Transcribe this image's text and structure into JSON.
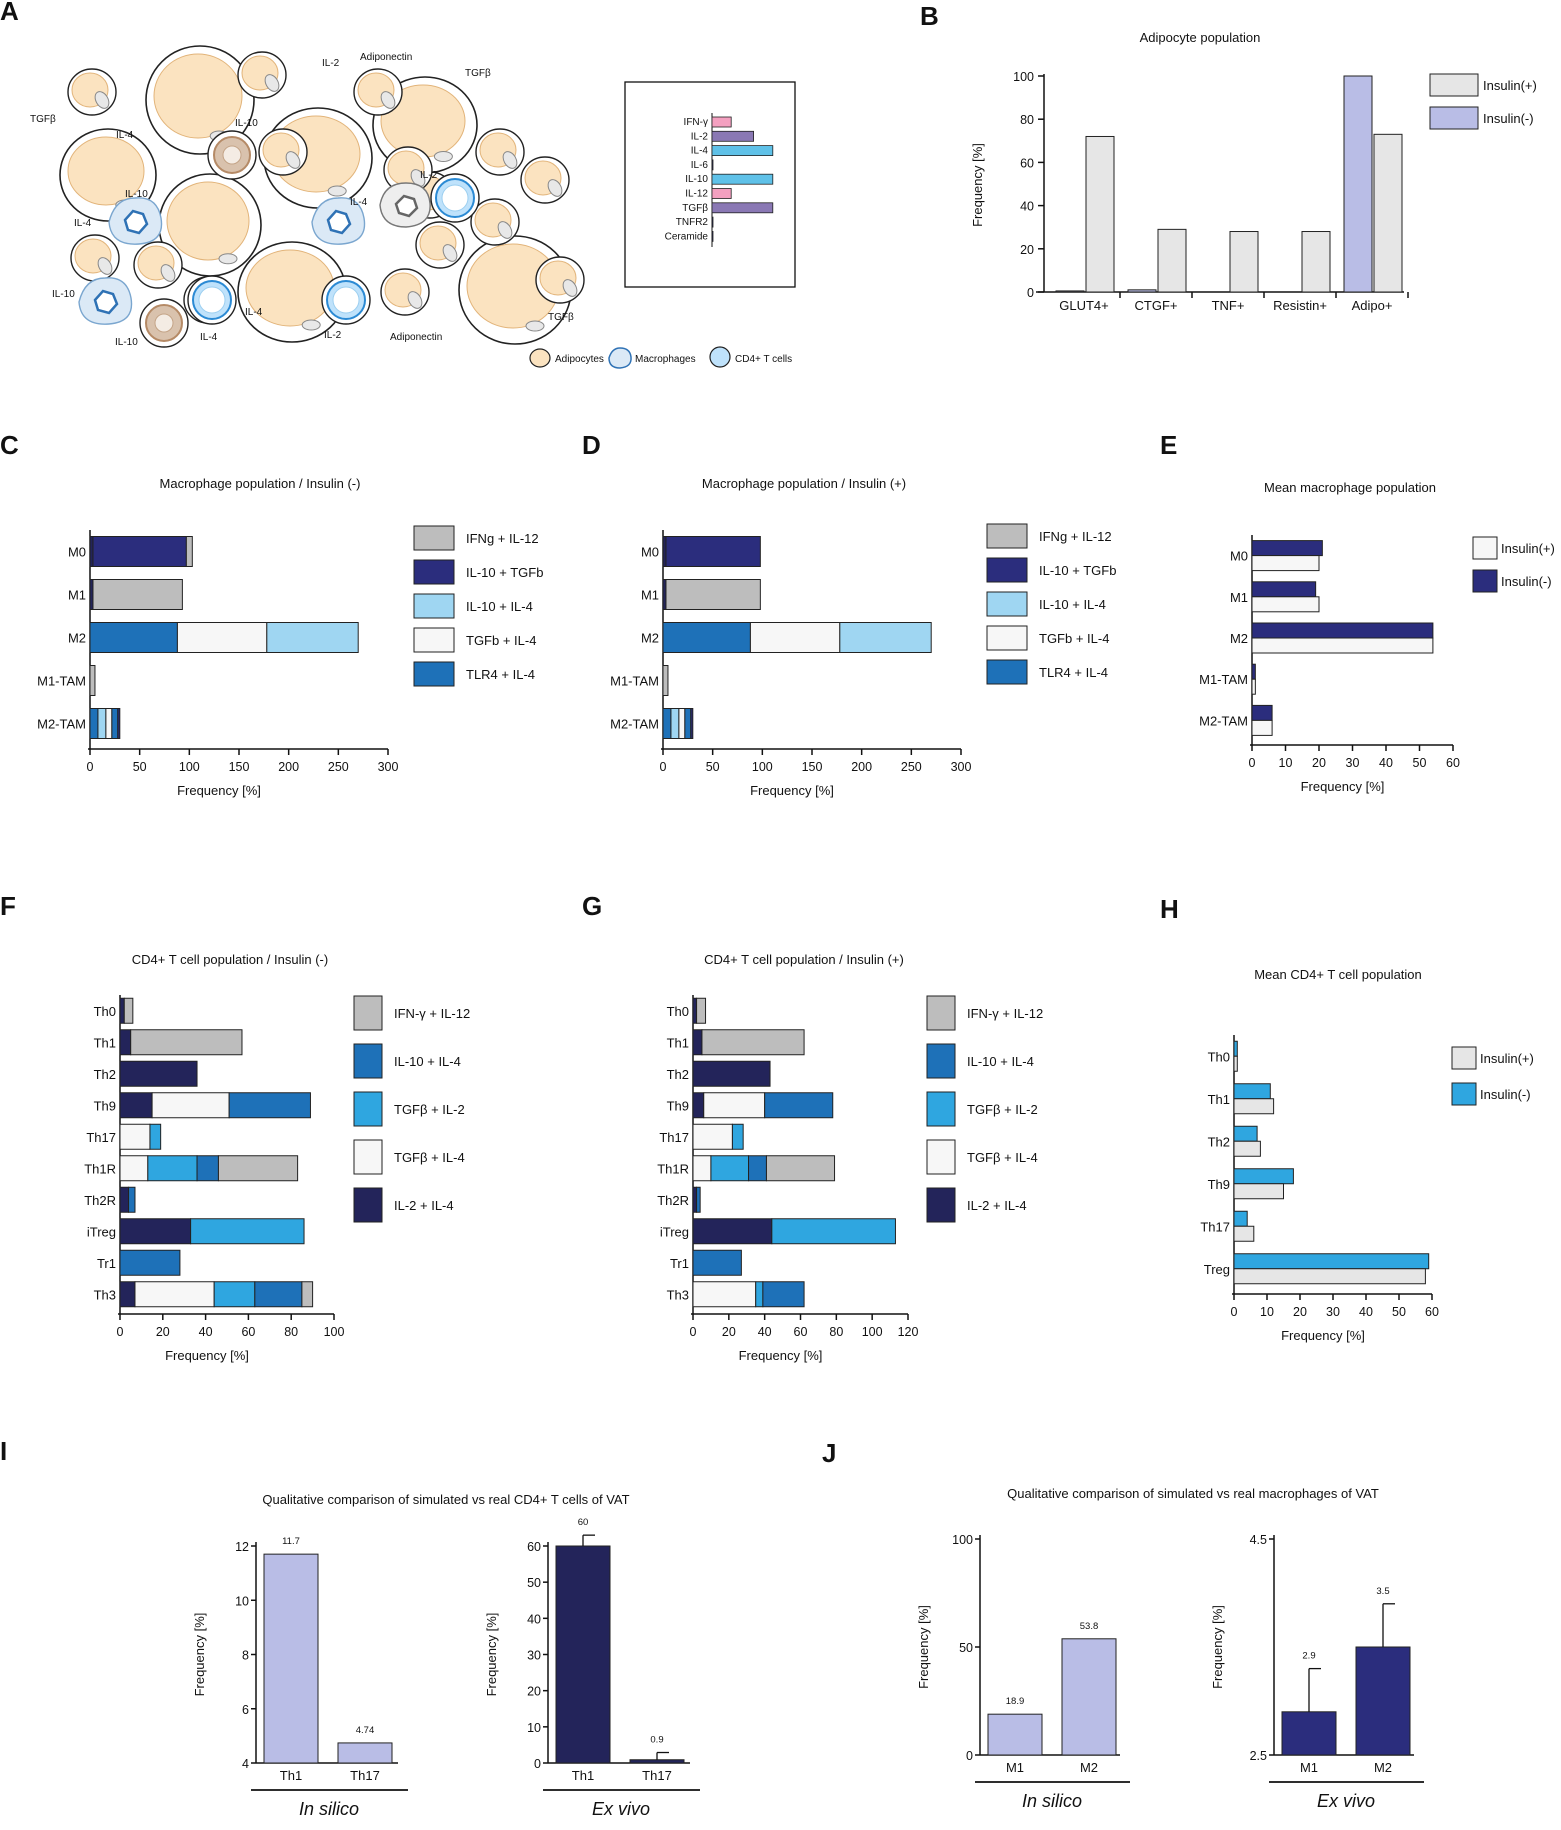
{
  "colors": {
    "cell_fill": "#fbe3c0",
    "cell_stroke": "#e2b47a",
    "macro_fill": "#dbe9f6",
    "macro_stroke": "#2f72b5",
    "tcell_fill": "#bfe2fb",
    "tcell_stroke": "#2b8ad4",
    "brown": "#b58a66",
    "gray_fill": "#bdbdbd",
    "light_gray": "#e6e6e6",
    "navy": "#2b2d7d",
    "lavender": "#b9bde6",
    "dark_navy": "#23245a",
    "pale_blue": "#9fd6f2",
    "mid_blue": "#1e71b8",
    "bright_blue": "#2fa6e0",
    "pink": "#f4a0c0",
    "purple": "#8a78b4",
    "white_seg": "#f7f7f7",
    "cyan_bar": "#5fc1e8"
  },
  "panels": {
    "A": {
      "letter": "A",
      "labels": [
        "IL-2",
        "Adiponectin",
        "TGFβ",
        "TGFβ",
        "IL-4",
        "IL-10",
        "IL-10",
        "IL-2",
        "IL-4",
        "IL-4",
        "IL-10",
        "IL-4",
        "IL-10",
        "IL-4",
        "IL-2",
        "Adiponectin",
        "TGFβ"
      ],
      "legend": [
        "Adipocytes",
        "Macrophages",
        "CD4+ T cells"
      ],
      "inset_chart": {
        "type": "bar",
        "orientation": "horizontal",
        "categories": [
          "IFN-γ",
          "IL-2",
          "IL-4",
          "IL-6",
          "IL-10",
          "IL-12",
          "TGFβ",
          "TNFR2",
          "Ceramide"
        ],
        "values": [
          3,
          6.5,
          9.5,
          0,
          9.5,
          3,
          9.5,
          0,
          0
        ],
        "color_keys": [
          "pink",
          "purple",
          "cyan_bar",
          "navy",
          "cyan_bar",
          "pink",
          "purple",
          "navy",
          "navy"
        ]
      }
    },
    "B": {
      "letter": "B",
      "chart": {
        "type": "bar",
        "title": "Adipocyte population",
        "categories": [
          "GLUT4+",
          "CTGF+",
          "TNF+",
          "Resistin+",
          "Adipo+"
        ],
        "series": [
          {
            "name": "Insulin(-)",
            "color_key": "lavender",
            "values": [
              0.5,
              1,
              0,
              0,
              100
            ]
          },
          {
            "name": "Insulin(+)",
            "color_key": "light_gray",
            "values": [
              72,
              29,
              28,
              28,
              73
            ]
          }
        ],
        "ylabel": "Frequency [%]",
        "ylim": [
          0,
          100
        ],
        "yticks": [
          "0",
          "20",
          "40",
          "60",
          "80",
          "100"
        ],
        "legend": [
          "Insulin(+)",
          "Insulin(-)"
        ]
      }
    },
    "C": {
      "letter": "C",
      "chart": {
        "type": "bar",
        "orientation": "horizontal-stacked",
        "title": "Macrophage population / Insulin (-)",
        "categories": [
          "M0",
          "M1",
          "M2",
          "M1-TAM",
          "M2-TAM"
        ],
        "segments": [
          [
            {
              "color_key": "dark_navy",
              "v": 3
            },
            {
              "color_key": "navy",
              "v": 94
            },
            {
              "color_key": "gray_fill",
              "v": 6
            }
          ],
          [
            {
              "color_key": "dark_navy",
              "v": 3
            },
            {
              "color_key": "gray_fill",
              "v": 90
            }
          ],
          [
            {
              "color_key": "mid_blue",
              "v": 88
            },
            {
              "color_key": "white_seg",
              "v": 90
            },
            {
              "color_key": "pale_blue",
              "v": 92
            }
          ],
          [
            {
              "color_key": "gray_fill",
              "v": 5
            }
          ],
          [
            {
              "color_key": "mid_blue",
              "v": 8
            },
            {
              "color_key": "pale_blue",
              "v": 8
            },
            {
              "color_key": "white_seg",
              "v": 6
            },
            {
              "color_key": "mid_blue",
              "v": 6
            },
            {
              "color_key": "navy",
              "v": 2
            }
          ]
        ],
        "xlabel": "Frequency [%]",
        "xlim": [
          0,
          300
        ],
        "xticks": [
          "0",
          "50",
          "100",
          "150",
          "200",
          "250",
          "300"
        ],
        "legend": [
          {
            "label": "IFNg + IL-12",
            "color_key": "gray_fill"
          },
          {
            "label": "IL-10 + TGFb",
            "color_key": "navy"
          },
          {
            "label": "IL-10 + IL-4",
            "color_key": "pale_blue"
          },
          {
            "label": "TGFb + IL-4",
            "color_key": "white_seg"
          },
          {
            "label": "TLR4 + IL-4",
            "color_key": "mid_blue"
          }
        ]
      }
    },
    "D": {
      "letter": "D",
      "chart": {
        "type": "bar",
        "orientation": "horizontal-stacked",
        "title": "Macrophage population / Insulin (+)",
        "categories": [
          "M0",
          "M1",
          "M2",
          "M1-TAM",
          "M2-TAM"
        ],
        "segments": [
          [
            {
              "color_key": "dark_navy",
              "v": 3
            },
            {
              "color_key": "navy",
              "v": 95
            }
          ],
          [
            {
              "color_key": "dark_navy",
              "v": 3
            },
            {
              "color_key": "gray_fill",
              "v": 95
            }
          ],
          [
            {
              "color_key": "mid_blue",
              "v": 88
            },
            {
              "color_key": "white_seg",
              "v": 90
            },
            {
              "color_key": "pale_blue",
              "v": 92
            }
          ],
          [
            {
              "color_key": "gray_fill",
              "v": 5
            }
          ],
          [
            {
              "color_key": "mid_blue",
              "v": 8
            },
            {
              "color_key": "pale_blue",
              "v": 8
            },
            {
              "color_key": "white_seg",
              "v": 6
            },
            {
              "color_key": "mid_blue",
              "v": 6
            },
            {
              "color_key": "navy",
              "v": 2
            }
          ]
        ],
        "xlabel": "Frequency [%]",
        "xlim": [
          0,
          300
        ],
        "xticks": [
          "0",
          "50",
          "100",
          "150",
          "200",
          "250",
          "300"
        ],
        "legend": [
          {
            "label": "IFNg + IL-12",
            "color_key": "gray_fill"
          },
          {
            "label": "IL-10 + TGFb",
            "color_key": "navy"
          },
          {
            "label": "IL-10 + IL-4",
            "color_key": "pale_blue"
          },
          {
            "label": "TGFb + IL-4",
            "color_key": "white_seg"
          },
          {
            "label": "TLR4 + IL-4",
            "color_key": "mid_blue"
          }
        ]
      }
    },
    "E": {
      "letter": "E",
      "chart": {
        "type": "bar",
        "orientation": "horizontal",
        "title": "Mean macrophage population",
        "categories": [
          "M0",
          "M1",
          "M2",
          "M1-TAM",
          "M2-TAM"
        ],
        "series": [
          {
            "name": "Insulin(-)",
            "color_key": "navy",
            "values": [
              21,
              19,
              54,
              1,
              6
            ]
          },
          {
            "name": "Insulin(+)",
            "color_key": "white_seg",
            "values": [
              20,
              20,
              54,
              1,
              6
            ]
          }
        ],
        "xlabel": "Frequency [%]",
        "xlim": [
          0,
          60
        ],
        "xticks": [
          "0",
          "10",
          "20",
          "30",
          "40",
          "50",
          "60"
        ],
        "legend": [
          "Insulin(+)",
          "Insulin(-)"
        ]
      }
    },
    "F": {
      "letter": "F",
      "chart": {
        "type": "bar",
        "orientation": "horizontal-stacked",
        "title": "CD4+ T cell population / Insulin (-)",
        "categories": [
          "Th0",
          "Th1",
          "Th2",
          "Th9",
          "Th17",
          "Th1R",
          "Th2R",
          "iTreg",
          "Tr1",
          "Th3"
        ],
        "segments": [
          [
            {
              "color_key": "dark_navy",
              "v": 2
            },
            {
              "color_key": "gray_fill",
              "v": 4
            }
          ],
          [
            {
              "color_key": "dark_navy",
              "v": 5
            },
            {
              "color_key": "gray_fill",
              "v": 52
            }
          ],
          [
            {
              "color_key": "dark_navy",
              "v": 36
            }
          ],
          [
            {
              "color_key": "dark_navy",
              "v": 15
            },
            {
              "color_key": "white_seg",
              "v": 36
            },
            {
              "color_key": "mid_blue",
              "v": 38
            }
          ],
          [
            {
              "color_key": "white_seg",
              "v": 14
            },
            {
              "color_key": "bright_blue",
              "v": 5
            }
          ],
          [
            {
              "color_key": "white_seg",
              "v": 13
            },
            {
              "color_key": "bright_blue",
              "v": 23
            },
            {
              "color_key": "mid_blue",
              "v": 10
            },
            {
              "color_key": "gray_fill",
              "v": 37
            }
          ],
          [
            {
              "color_key": "dark_navy",
              "v": 4
            },
            {
              "color_key": "mid_blue",
              "v": 3
            }
          ],
          [
            {
              "color_key": "dark_navy",
              "v": 33
            },
            {
              "color_key": "bright_blue",
              "v": 53
            }
          ],
          [
            {
              "color_key": "mid_blue",
              "v": 28
            }
          ],
          [
            {
              "color_key": "dark_navy",
              "v": 7
            },
            {
              "color_key": "white_seg",
              "v": 37
            },
            {
              "color_key": "bright_blue",
              "v": 19
            },
            {
              "color_key": "mid_blue",
              "v": 22
            },
            {
              "color_key": "gray_fill",
              "v": 5
            }
          ]
        ],
        "xlabel": "Frequency [%]",
        "xlim": [
          0,
          100
        ],
        "xticks": [
          "0",
          "20",
          "40",
          "60",
          "80",
          "100"
        ],
        "legend": [
          {
            "label": "IFN-γ + IL-12",
            "color_key": "gray_fill"
          },
          {
            "label": "IL-10 + IL-4",
            "color_key": "mid_blue"
          },
          {
            "label": "TGFβ + IL-2",
            "color_key": "bright_blue"
          },
          {
            "label": "TGFβ + IL-4",
            "color_key": "white_seg"
          },
          {
            "label": "IL-2 + IL-4",
            "color_key": "dark_navy"
          }
        ]
      }
    },
    "G": {
      "letter": "G",
      "chart": {
        "type": "bar",
        "orientation": "horizontal-stacked",
        "title": "CD4+ T cell population / Insulin (+)",
        "categories": [
          "Th0",
          "Th1",
          "Th2",
          "Th9",
          "Th17",
          "Th1R",
          "Th2R",
          "iTreg",
          "Tr1",
          "Th3"
        ],
        "segments": [
          [
            {
              "color_key": "dark_navy",
              "v": 2
            },
            {
              "color_key": "gray_fill",
              "v": 5
            }
          ],
          [
            {
              "color_key": "dark_navy",
              "v": 5
            },
            {
              "color_key": "gray_fill",
              "v": 57
            }
          ],
          [
            {
              "color_key": "dark_navy",
              "v": 43
            }
          ],
          [
            {
              "color_key": "dark_navy",
              "v": 6
            },
            {
              "color_key": "white_seg",
              "v": 34
            },
            {
              "color_key": "mid_blue",
              "v": 38
            }
          ],
          [
            {
              "color_key": "white_seg",
              "v": 22
            },
            {
              "color_key": "bright_blue",
              "v": 6
            }
          ],
          [
            {
              "color_key": "white_seg",
              "v": 10
            },
            {
              "color_key": "bright_blue",
              "v": 21
            },
            {
              "color_key": "mid_blue",
              "v": 10
            },
            {
              "color_key": "gray_fill",
              "v": 38
            }
          ],
          [
            {
              "color_key": "dark_navy",
              "v": 2
            },
            {
              "color_key": "mid_blue",
              "v": 2
            }
          ],
          [
            {
              "color_key": "dark_navy",
              "v": 44
            },
            {
              "color_key": "bright_blue",
              "v": 69
            }
          ],
          [
            {
              "color_key": "mid_blue",
              "v": 27
            }
          ],
          [
            {
              "color_key": "white_seg",
              "v": 35
            },
            {
              "color_key": "bright_blue",
              "v": 4
            },
            {
              "color_key": "mid_blue",
              "v": 23
            }
          ]
        ],
        "xlabel": "Frequency [%]",
        "xlim": [
          0,
          120
        ],
        "xticks": [
          "0",
          "20",
          "40",
          "60",
          "80",
          "100",
          "120"
        ],
        "legend": [
          {
            "label": "IFN-γ  + IL-12",
            "color_key": "gray_fill"
          },
          {
            "label": "IL-10 + IL-4",
            "color_key": "mid_blue"
          },
          {
            "label": "TGFβ + IL-2",
            "color_key": "bright_blue"
          },
          {
            "label": "TGFβ + IL-4",
            "color_key": "white_seg"
          },
          {
            "label": "IL-2 + IL-4",
            "color_key": "dark_navy"
          }
        ]
      }
    },
    "H": {
      "letter": "H",
      "chart": {
        "type": "bar",
        "orientation": "horizontal",
        "title": "Mean CD4+ T cell population",
        "categories": [
          "Th0",
          "Th1",
          "Th2",
          "Th9",
          "Th17",
          "Treg"
        ],
        "series": [
          {
            "name": "Insulin(-)",
            "color_key": "bright_blue",
            "values": [
              1,
              11,
              7,
              18,
              4,
              59
            ]
          },
          {
            "name": "Insulin(+)",
            "color_key": "light_gray",
            "values": [
              1,
              12,
              8,
              15,
              6,
              58
            ]
          }
        ],
        "xlabel": "Frequency [%]",
        "xlim": [
          0,
          60
        ],
        "xticks": [
          "0",
          "10",
          "20",
          "30",
          "40",
          "50",
          "60"
        ],
        "legend": [
          "Insulin(+)",
          "Insulin(-)"
        ]
      }
    },
    "I": {
      "letter": "I",
      "title": "Qualitative comparison of simulated vs real CD4+ T cells of VAT",
      "charts": [
        {
          "type": "bar",
          "condition": "In silico",
          "categories": [
            "Th1",
            "Th17"
          ],
          "values": [
            11.7,
            4.74
          ],
          "labels": [
            "11.7",
            "4.74"
          ],
          "errors": [
            0,
            0
          ],
          "color_key": "lavender",
          "ylabel": "Frequency [%]",
          "ylim": [
            4,
            12
          ],
          "yticks": [
            "4",
            "6",
            "8",
            "10",
            "12"
          ]
        },
        {
          "type": "bar",
          "condition": "Ex vivo",
          "categories": [
            "Th1",
            "Th17"
          ],
          "values": [
            60,
            0.9
          ],
          "labels": [
            "60",
            "0.9"
          ],
          "errors": [
            3,
            2
          ],
          "color_key": "dark_navy",
          "ylabel": "Frequency [%]",
          "ylim": [
            0,
            60
          ],
          "yticks": [
            "0",
            "10",
            "20",
            "30",
            "40",
            "50",
            "60"
          ]
        }
      ]
    },
    "J": {
      "letter": "J",
      "title": "Qualitative comparison of simulated vs real macrophages of VAT",
      "charts": [
        {
          "type": "bar",
          "condition": "In silico",
          "categories": [
            "M1",
            "M2"
          ],
          "values": [
            18.9,
            53.8
          ],
          "labels": [
            "18.9",
            "53.8"
          ],
          "errors": [
            0,
            0
          ],
          "color_key": "lavender",
          "ylabel": "Frequency [%]",
          "ylim": [
            0,
            100
          ],
          "yticks": [
            "0",
            "50",
            "100"
          ]
        },
        {
          "type": "bar",
          "condition": "Ex vivo",
          "categories": [
            "M1",
            "M2"
          ],
          "values": [
            2.9,
            3.5
          ],
          "labels": [
            "2.9",
            "3.5"
          ],
          "errors": [
            0.4,
            0.4
          ],
          "color_key": "navy",
          "ylabel": "Frequency [%]",
          "ylim": [
            2.5,
            4.5
          ],
          "yticks": [
            "2.5",
            "4.5"
          ]
        }
      ]
    }
  }
}
